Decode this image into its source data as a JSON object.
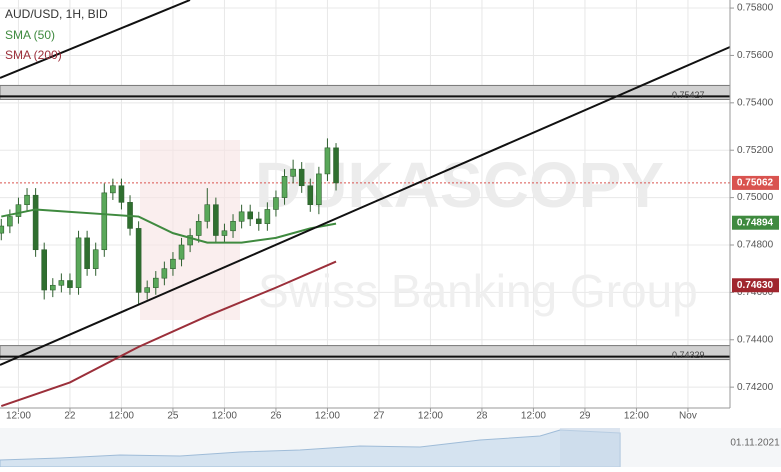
{
  "chart_data": {
    "type": "candlestick",
    "title": "AUD/USD, 1H, BID",
    "watermark": [
      "DUKASCOPY",
      "Swiss Banking Group"
    ],
    "date_label": "01.11.2021",
    "x": [
      -16,
      -14,
      -12,
      -10,
      -8,
      -6,
      -4,
      -2,
      0,
      2,
      4,
      6,
      8,
      10,
      12,
      14,
      16,
      18,
      20,
      22,
      24,
      26,
      28,
      30,
      32,
      34,
      36,
      38,
      40,
      42,
      44,
      46,
      48,
      50,
      52,
      54,
      56,
      58,
      60,
      62
    ],
    "open": [
      0.7485,
      0.7488,
      0.7492,
      0.7497,
      0.7501,
      0.7478,
      0.7461,
      0.7463,
      0.7465,
      0.7462,
      0.7483,
      0.747,
      0.7478,
      0.7502,
      0.7505,
      0.7498,
      0.7487,
      0.746,
      0.7462,
      0.7466,
      0.747,
      0.7474,
      0.748,
      0.7484,
      0.749,
      0.7497,
      0.7484,
      0.7486,
      0.749,
      0.7494,
      0.7491,
      0.7489,
      0.7495,
      0.75,
      0.7509,
      0.7512,
      0.7505,
      0.7497,
      0.751,
      0.7521
    ],
    "high": [
      0.7491,
      0.7495,
      0.75,
      0.7504,
      0.7504,
      0.7481,
      0.7466,
      0.7468,
      0.7468,
      0.7486,
      0.7486,
      0.7481,
      0.7506,
      0.7508,
      0.7508,
      0.7501,
      0.749,
      0.7465,
      0.7469,
      0.7473,
      0.7477,
      0.7483,
      0.7487,
      0.7493,
      0.7504,
      0.75,
      0.7489,
      0.7493,
      0.7497,
      0.7497,
      0.7494,
      0.7498,
      0.7503,
      0.7512,
      0.7516,
      0.7515,
      0.7508,
      0.7513,
      0.7525,
      0.7523
    ],
    "low": [
      0.7482,
      0.7485,
      0.7489,
      0.7494,
      0.7475,
      0.7457,
      0.7458,
      0.746,
      0.7459,
      0.7459,
      0.7467,
      0.7467,
      0.7475,
      0.7499,
      0.7495,
      0.7484,
      0.7455,
      0.7457,
      0.7459,
      0.7463,
      0.7467,
      0.7471,
      0.7477,
      0.7481,
      0.7487,
      0.7481,
      0.7481,
      0.7483,
      0.7487,
      0.7488,
      0.7486,
      0.7486,
      0.7492,
      0.7497,
      0.7506,
      0.7502,
      0.7494,
      0.7493,
      0.7507,
      0.7503
    ],
    "close": [
      0.7488,
      0.7492,
      0.7497,
      0.7501,
      0.7478,
      0.7461,
      0.7463,
      0.7465,
      0.7462,
      0.7483,
      0.747,
      0.7478,
      0.7502,
      0.7505,
      0.7498,
      0.7487,
      0.746,
      0.7462,
      0.7466,
      0.747,
      0.7474,
      0.748,
      0.7484,
      0.749,
      0.7497,
      0.7484,
      0.7486,
      0.749,
      0.7494,
      0.7491,
      0.7489,
      0.7495,
      0.75,
      0.7509,
      0.7512,
      0.7505,
      0.7497,
      0.751,
      0.7521,
      0.75062
    ],
    "up_color": "#5aa85a",
    "down_color": "#2f6f2f",
    "series": [
      {
        "name": "SMA (50)",
        "color": "#3f8a3f",
        "x": [
          -16,
          -8,
          0,
          8,
          16,
          24,
          32,
          40,
          48,
          56,
          62
        ],
        "values": [
          0.7492,
          0.7495,
          0.7494,
          0.7493,
          0.7492,
          0.7485,
          0.7481,
          0.7481,
          0.7483,
          0.7487,
          0.7489
        ]
      },
      {
        "name": "SMA (200)",
        "color": "#9b2f3a",
        "x": [
          -16,
          0,
          16,
          32,
          48,
          62
        ],
        "values": [
          0.7412,
          0.7422,
          0.7437,
          0.745,
          0.7462,
          0.7473
        ]
      }
    ],
    "zones": [
      {
        "value": 0.75427,
        "label": "0.75427"
      },
      {
        "value": 0.74329,
        "label": "0.74329"
      }
    ],
    "price_tags": [
      {
        "value": 0.75062,
        "label": "0.75062",
        "color": "#d9534f"
      },
      {
        "value": 0.74894,
        "label": "0.74894",
        "color": "#3f8a3f"
      },
      {
        "value": 0.7463,
        "label": "0.74630",
        "color": "#a0262e"
      }
    ],
    "xlim": [
      -16.3,
      153.8
    ],
    "ylim": [
      0.74112,
      0.75834
    ],
    "xticks": [
      {
        "value": -12,
        "label": "12:00"
      },
      {
        "value": 0,
        "label": "22"
      },
      {
        "value": 12,
        "label": "12:00"
      },
      {
        "value": 24,
        "label": "25"
      },
      {
        "value": 36,
        "label": "12:00"
      },
      {
        "value": 48,
        "label": "26"
      },
      {
        "value": 60,
        "label": "12:00"
      },
      {
        "value": 72,
        "label": "27"
      },
      {
        "value": 84,
        "label": "12:00"
      },
      {
        "value": 96,
        "label": "28"
      },
      {
        "value": 108,
        "label": "12:00"
      },
      {
        "value": 120,
        "label": "29"
      },
      {
        "value": 132,
        "label": "12:00"
      },
      {
        "value": 144,
        "label": "Nov"
      }
    ],
    "yticks": [
      {
        "value": 0.758,
        "label": "0.75800"
      },
      {
        "value": 0.756,
        "label": "0.75600"
      },
      {
        "value": 0.754,
        "label": "0.75400"
      },
      {
        "value": 0.752,
        "label": "0.75200"
      },
      {
        "value": 0.75,
        "label": "0.75000"
      },
      {
        "value": 0.748,
        "label": "0.74800"
      },
      {
        "value": 0.746,
        "label": "0.74600"
      },
      {
        "value": 0.744,
        "label": "0.74400"
      },
      {
        "value": 0.742,
        "label": "0.74200"
      }
    ],
    "grid": true
  }
}
